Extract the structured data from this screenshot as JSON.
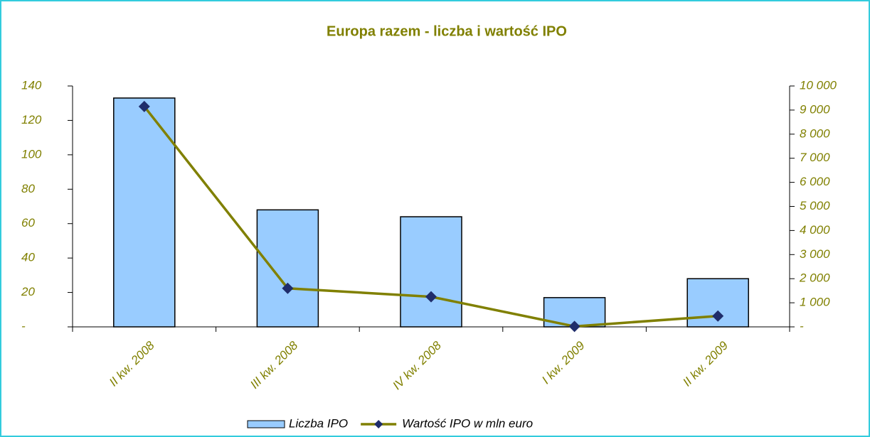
{
  "chart_data": {
    "type": "bar",
    "title": "Europa razem - liczba i wartość IPO",
    "categories": [
      "II kw. 2008",
      "III kw. 2008",
      "IV kw. 2008",
      "I kw. 2009",
      "II kw. 2009"
    ],
    "series": [
      {
        "name": "Liczba IPO",
        "type": "bar",
        "color": "#99ccff",
        "values": [
          133,
          68,
          64,
          17,
          28
        ]
      },
      {
        "name": "Wartość IPO w mln euro",
        "type": "line",
        "axis": "y2",
        "color": "#808000",
        "marker_color": "#1f2d6b",
        "values": [
          9150,
          1600,
          1250,
          20,
          450
        ]
      }
    ],
    "ylim": [
      0,
      140
    ],
    "yticks": [
      {
        "value": 0,
        "label": "-"
      },
      20,
      40,
      60,
      80,
      100,
      120,
      140
    ],
    "y2lim": [
      0,
      10000
    ],
    "y2ticks": [
      {
        "value": 0,
        "label": "-"
      },
      {
        "value": 1000,
        "label": "1 000"
      },
      {
        "value": 2000,
        "label": "2 000"
      },
      {
        "value": 3000,
        "label": "3 000"
      },
      {
        "value": 4000,
        "label": "4 000"
      },
      {
        "value": 5000,
        "label": "5 000"
      },
      {
        "value": 6000,
        "label": "6 000"
      },
      {
        "value": 7000,
        "label": "7 000"
      },
      {
        "value": 8000,
        "label": "8 000"
      },
      {
        "value": 9000,
        "label": "9 000"
      },
      {
        "value": 10000,
        "label": "10 000"
      }
    ],
    "legend": "bottom"
  }
}
